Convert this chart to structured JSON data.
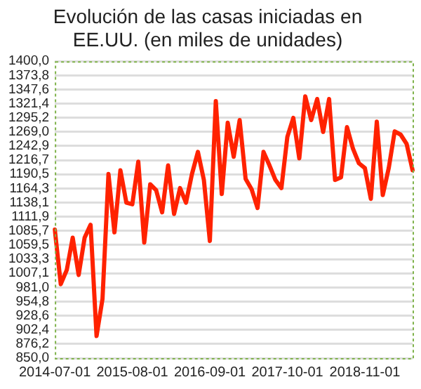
{
  "chart_data": {
    "type": "line",
    "title": "Evolución de las casas iniciadas en EE.UU. (en miles de unidades)",
    "categories": [
      "2014-07-01",
      null,
      null,
      null,
      null,
      null,
      null,
      null,
      null,
      null,
      null,
      null,
      null,
      "2015-08-01",
      null,
      null,
      null,
      null,
      null,
      null,
      null,
      null,
      null,
      null,
      null,
      null,
      "2016-09-01",
      null,
      null,
      null,
      null,
      null,
      null,
      null,
      null,
      null,
      null,
      null,
      null,
      "2017-10-01",
      null,
      null,
      null,
      null,
      null,
      null,
      null,
      null,
      null,
      null,
      null,
      null,
      "2018-11-01",
      null,
      null,
      null,
      null,
      null,
      null,
      null,
      null
    ],
    "series": [
      {
        "color": "#ff2200",
        "values": [
          1088,
          987,
          1013,
          1073,
          1004,
          1073,
          1097,
          891,
          960,
          1191,
          1083,
          1198,
          1138,
          1135,
          1214,
          1064,
          1172,
          1161,
          1120,
          1207,
          1117,
          1165,
          1138,
          1191,
          1232,
          1180,
          1067,
          1326,
          1154,
          1286,
          1223,
          1291,
          1182,
          1163,
          1128,
          1232,
          1207,
          1180,
          1165,
          1260,
          1295,
          1220,
          1335,
          1291,
          1330,
          1269,
          1330,
          1180,
          1185,
          1278,
          1238,
          1211,
          1202,
          1145,
          1288,
          1152,
          1202,
          1270,
          1264,
          1247,
          1198
        ]
      }
    ],
    "ylim": [
      850,
      1400
    ],
    "yticks": [
      {
        "value": 850,
        "label": "850,0"
      },
      {
        "value": 876.2,
        "label": "876,2"
      },
      {
        "value": 902.4,
        "label": "902,4"
      },
      {
        "value": 928.6,
        "label": "928,6"
      },
      {
        "value": 954.8,
        "label": "954,8"
      },
      {
        "value": 981,
        "label": "981,0"
      },
      {
        "value": 1007.1,
        "label": "1007,1"
      },
      {
        "value": 1033.3,
        "label": "1033,3"
      },
      {
        "value": 1059.5,
        "label": "1059,5"
      },
      {
        "value": 1085.7,
        "label": "1085,7"
      },
      {
        "value": 1111.9,
        "label": "1111,9"
      },
      {
        "value": 1138.1,
        "label": "1138,1"
      },
      {
        "value": 1164.3,
        "label": "1164,3"
      },
      {
        "value": 1190.5,
        "label": "1190,5"
      },
      {
        "value": 1216.7,
        "label": "1216,7"
      },
      {
        "value": 1242.9,
        "label": "1242,9"
      },
      {
        "value": 1269,
        "label": "1269,0"
      },
      {
        "value": 1295.2,
        "label": "1295,2"
      },
      {
        "value": 1321.4,
        "label": "1321,4"
      },
      {
        "value": 1347.6,
        "label": "1347,6"
      },
      {
        "value": 1373.8,
        "label": "1373,8"
      },
      {
        "value": 1400,
        "label": "1400,0"
      }
    ],
    "grid": "y",
    "legend": false,
    "marker": "none",
    "line_style": "solid"
  }
}
